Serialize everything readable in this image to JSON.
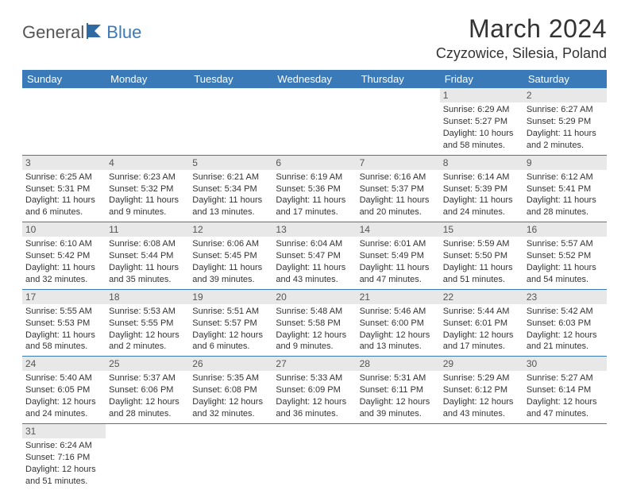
{
  "logo": {
    "part1": "General",
    "part2": "Blue"
  },
  "title": "March 2024",
  "location": "Czyzowice, Silesia, Poland",
  "colors": {
    "header_bg": "#3a7ab8",
    "daynum_bg": "#e8e8e8",
    "border": "#3a7ab8",
    "text": "#333333"
  },
  "days_of_week": [
    "Sunday",
    "Monday",
    "Tuesday",
    "Wednesday",
    "Thursday",
    "Friday",
    "Saturday"
  ],
  "weeks": [
    [
      null,
      null,
      null,
      null,
      null,
      {
        "n": "1",
        "sr": "Sunrise: 6:29 AM",
        "ss": "Sunset: 5:27 PM",
        "d1": "Daylight: 10 hours",
        "d2": "and 58 minutes."
      },
      {
        "n": "2",
        "sr": "Sunrise: 6:27 AM",
        "ss": "Sunset: 5:29 PM",
        "d1": "Daylight: 11 hours",
        "d2": "and 2 minutes."
      }
    ],
    [
      {
        "n": "3",
        "sr": "Sunrise: 6:25 AM",
        "ss": "Sunset: 5:31 PM",
        "d1": "Daylight: 11 hours",
        "d2": "and 6 minutes."
      },
      {
        "n": "4",
        "sr": "Sunrise: 6:23 AM",
        "ss": "Sunset: 5:32 PM",
        "d1": "Daylight: 11 hours",
        "d2": "and 9 minutes."
      },
      {
        "n": "5",
        "sr": "Sunrise: 6:21 AM",
        "ss": "Sunset: 5:34 PM",
        "d1": "Daylight: 11 hours",
        "d2": "and 13 minutes."
      },
      {
        "n": "6",
        "sr": "Sunrise: 6:19 AM",
        "ss": "Sunset: 5:36 PM",
        "d1": "Daylight: 11 hours",
        "d2": "and 17 minutes."
      },
      {
        "n": "7",
        "sr": "Sunrise: 6:16 AM",
        "ss": "Sunset: 5:37 PM",
        "d1": "Daylight: 11 hours",
        "d2": "and 20 minutes."
      },
      {
        "n": "8",
        "sr": "Sunrise: 6:14 AM",
        "ss": "Sunset: 5:39 PM",
        "d1": "Daylight: 11 hours",
        "d2": "and 24 minutes."
      },
      {
        "n": "9",
        "sr": "Sunrise: 6:12 AM",
        "ss": "Sunset: 5:41 PM",
        "d1": "Daylight: 11 hours",
        "d2": "and 28 minutes."
      }
    ],
    [
      {
        "n": "10",
        "sr": "Sunrise: 6:10 AM",
        "ss": "Sunset: 5:42 PM",
        "d1": "Daylight: 11 hours",
        "d2": "and 32 minutes."
      },
      {
        "n": "11",
        "sr": "Sunrise: 6:08 AM",
        "ss": "Sunset: 5:44 PM",
        "d1": "Daylight: 11 hours",
        "d2": "and 35 minutes."
      },
      {
        "n": "12",
        "sr": "Sunrise: 6:06 AM",
        "ss": "Sunset: 5:45 PM",
        "d1": "Daylight: 11 hours",
        "d2": "and 39 minutes."
      },
      {
        "n": "13",
        "sr": "Sunrise: 6:04 AM",
        "ss": "Sunset: 5:47 PM",
        "d1": "Daylight: 11 hours",
        "d2": "and 43 minutes."
      },
      {
        "n": "14",
        "sr": "Sunrise: 6:01 AM",
        "ss": "Sunset: 5:49 PM",
        "d1": "Daylight: 11 hours",
        "d2": "and 47 minutes."
      },
      {
        "n": "15",
        "sr": "Sunrise: 5:59 AM",
        "ss": "Sunset: 5:50 PM",
        "d1": "Daylight: 11 hours",
        "d2": "and 51 minutes."
      },
      {
        "n": "16",
        "sr": "Sunrise: 5:57 AM",
        "ss": "Sunset: 5:52 PM",
        "d1": "Daylight: 11 hours",
        "d2": "and 54 minutes."
      }
    ],
    [
      {
        "n": "17",
        "sr": "Sunrise: 5:55 AM",
        "ss": "Sunset: 5:53 PM",
        "d1": "Daylight: 11 hours",
        "d2": "and 58 minutes."
      },
      {
        "n": "18",
        "sr": "Sunrise: 5:53 AM",
        "ss": "Sunset: 5:55 PM",
        "d1": "Daylight: 12 hours",
        "d2": "and 2 minutes."
      },
      {
        "n": "19",
        "sr": "Sunrise: 5:51 AM",
        "ss": "Sunset: 5:57 PM",
        "d1": "Daylight: 12 hours",
        "d2": "and 6 minutes."
      },
      {
        "n": "20",
        "sr": "Sunrise: 5:48 AM",
        "ss": "Sunset: 5:58 PM",
        "d1": "Daylight: 12 hours",
        "d2": "and 9 minutes."
      },
      {
        "n": "21",
        "sr": "Sunrise: 5:46 AM",
        "ss": "Sunset: 6:00 PM",
        "d1": "Daylight: 12 hours",
        "d2": "and 13 minutes."
      },
      {
        "n": "22",
        "sr": "Sunrise: 5:44 AM",
        "ss": "Sunset: 6:01 PM",
        "d1": "Daylight: 12 hours",
        "d2": "and 17 minutes."
      },
      {
        "n": "23",
        "sr": "Sunrise: 5:42 AM",
        "ss": "Sunset: 6:03 PM",
        "d1": "Daylight: 12 hours",
        "d2": "and 21 minutes."
      }
    ],
    [
      {
        "n": "24",
        "sr": "Sunrise: 5:40 AM",
        "ss": "Sunset: 6:05 PM",
        "d1": "Daylight: 12 hours",
        "d2": "and 24 minutes."
      },
      {
        "n": "25",
        "sr": "Sunrise: 5:37 AM",
        "ss": "Sunset: 6:06 PM",
        "d1": "Daylight: 12 hours",
        "d2": "and 28 minutes."
      },
      {
        "n": "26",
        "sr": "Sunrise: 5:35 AM",
        "ss": "Sunset: 6:08 PM",
        "d1": "Daylight: 12 hours",
        "d2": "and 32 minutes."
      },
      {
        "n": "27",
        "sr": "Sunrise: 5:33 AM",
        "ss": "Sunset: 6:09 PM",
        "d1": "Daylight: 12 hours",
        "d2": "and 36 minutes."
      },
      {
        "n": "28",
        "sr": "Sunrise: 5:31 AM",
        "ss": "Sunset: 6:11 PM",
        "d1": "Daylight: 12 hours",
        "d2": "and 39 minutes."
      },
      {
        "n": "29",
        "sr": "Sunrise: 5:29 AM",
        "ss": "Sunset: 6:12 PM",
        "d1": "Daylight: 12 hours",
        "d2": "and 43 minutes."
      },
      {
        "n": "30",
        "sr": "Sunrise: 5:27 AM",
        "ss": "Sunset: 6:14 PM",
        "d1": "Daylight: 12 hours",
        "d2": "and 47 minutes."
      }
    ],
    [
      {
        "n": "31",
        "sr": "Sunrise: 6:24 AM",
        "ss": "Sunset: 7:16 PM",
        "d1": "Daylight: 12 hours",
        "d2": "and 51 minutes."
      },
      null,
      null,
      null,
      null,
      null,
      null
    ]
  ]
}
